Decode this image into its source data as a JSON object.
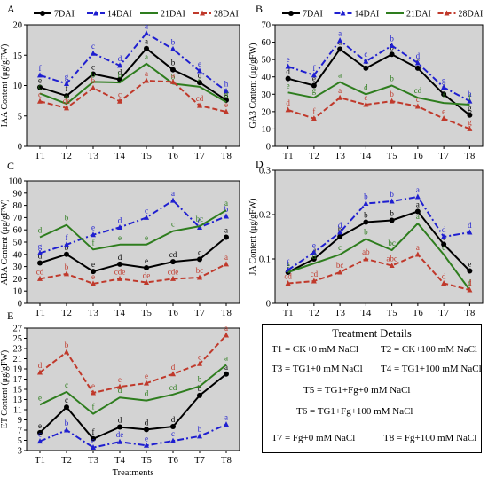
{
  "chart_data": [
    {
      "id": "A",
      "panel_label": "A",
      "type": "line",
      "ylabel": "IAA Content (μg/gFW)",
      "categories": [
        "T1",
        "T2",
        "T3",
        "T4",
        "T5",
        "T6",
        "T7",
        "T8"
      ],
      "ylim": [
        0,
        20
      ],
      "yticks": [
        0,
        5,
        10,
        15,
        20
      ],
      "legend_position": "top",
      "series": [
        {
          "name": "7DAI",
          "values": [
            9.7,
            8.3,
            11.9,
            11.0,
            16.1,
            12.6,
            10.5,
            7.6
          ],
          "letters": [
            "e",
            "f",
            "c",
            "d",
            "a",
            "b",
            "d",
            "g"
          ],
          "color": "#000000",
          "style": "solid",
          "marker": "circle"
        },
        {
          "name": "14DAI",
          "values": [
            11.7,
            10.3,
            15.3,
            13.3,
            18.6,
            16.0,
            12.4,
            9.1
          ],
          "letters": [
            "f",
            "g",
            "c",
            "d",
            "a",
            "b",
            "e",
            "h"
          ],
          "color": "#1f1fd0",
          "style": "dashdot",
          "marker": "triangle"
        },
        {
          "name": "21DAI",
          "values": [
            8.7,
            7.0,
            10.6,
            10.5,
            13.6,
            10.3,
            9.8,
            7.3
          ],
          "letters": [
            "c",
            "e",
            "b",
            "b",
            "a",
            "b",
            "c",
            "d"
          ],
          "color": "#2e7d1e",
          "style": "solid",
          "marker": "none"
        },
        {
          "name": "28DAI",
          "values": [
            7.4,
            6.3,
            9.6,
            7.4,
            10.8,
            10.6,
            6.7,
            5.7
          ],
          "letters": [
            "c",
            "de",
            "b",
            "c",
            "a",
            "a",
            "cd",
            "e"
          ],
          "color": "#c0392b",
          "style": "dashed",
          "marker": "triangle"
        }
      ]
    },
    {
      "id": "B",
      "panel_label": "B",
      "type": "line",
      "ylabel": "GA3 Content (μg/gFW)",
      "categories": [
        "T1",
        "T2",
        "T3",
        "T4",
        "T5",
        "T6",
        "T7",
        "T8"
      ],
      "ylim": [
        0,
        70
      ],
      "yticks": [
        0,
        10,
        20,
        30,
        40,
        50,
        60,
        70
      ],
      "legend_position": "top",
      "series": [
        {
          "name": "7DAI",
          "values": [
            39,
            35,
            56,
            45,
            53,
            45,
            30,
            18
          ],
          "letters": [
            "d",
            "e",
            "a",
            "c",
            "b",
            "c",
            "f",
            "g"
          ],
          "color": "#000000",
          "style": "solid",
          "marker": "circle"
        },
        {
          "name": "14DAI",
          "values": [
            46,
            41,
            61,
            49,
            58,
            48,
            34,
            26
          ],
          "letters": [
            "e",
            "f",
            "a",
            "c",
            "b",
            "d",
            "g",
            "h"
          ],
          "color": "#1f1fd0",
          "style": "dashdot",
          "marker": "triangle"
        },
        {
          "name": "21DAI",
          "values": [
            31,
            28,
            37,
            30,
            35,
            28,
            25,
            24
          ],
          "letters": [
            "e",
            "g",
            "a",
            "d",
            "b",
            "cd",
            "f",
            "f"
          ],
          "color": "#2e7d1e",
          "style": "solid",
          "marker": "none"
        },
        {
          "name": "28DAI",
          "values": [
            21,
            16,
            28,
            24,
            26,
            23,
            16,
            10
          ],
          "letters": [
            "d",
            "f",
            "a",
            "c",
            "b",
            "c",
            "e",
            "g"
          ],
          "color": "#c0392b",
          "style": "dashed",
          "marker": "triangle"
        }
      ]
    },
    {
      "id": "C",
      "panel_label": "C",
      "type": "line",
      "ylabel": "ABA Content (μg/gFW)",
      "categories": [
        "T1",
        "T2",
        "T3",
        "T4",
        "T5",
        "T6",
        "T7",
        "T8"
      ],
      "ylim": [
        0,
        100
      ],
      "yticks": [
        0,
        10,
        20,
        30,
        40,
        50,
        60,
        70,
        80,
        90,
        100
      ],
      "series": [
        {
          "name": "7DAI",
          "values": [
            33,
            40,
            26,
            32,
            29,
            34,
            36,
            54
          ],
          "letters": [
            "d",
            "b",
            "e",
            "d",
            "e",
            "cd",
            "c",
            "a"
          ],
          "color": "#000000",
          "style": "solid",
          "marker": "circle"
        },
        {
          "name": "14DAI",
          "values": [
            41,
            48,
            56,
            62,
            70,
            84,
            62,
            71
          ],
          "letters": [
            "g",
            "f",
            "e",
            "d",
            "c",
            "a",
            "d",
            "b"
          ],
          "color": "#1f1fd0",
          "style": "dashdot",
          "marker": "triangle"
        },
        {
          "name": "21DAI",
          "values": [
            54,
            64,
            44,
            48,
            48,
            59,
            63,
            76
          ],
          "letters": [
            "d",
            "b",
            "f",
            "e",
            "e",
            "c",
            "bc",
            "a"
          ],
          "color": "#2e7d1e",
          "style": "solid",
          "marker": "none"
        },
        {
          "name": "28DAI",
          "values": [
            20,
            24,
            16,
            20,
            17,
            20,
            21,
            32
          ],
          "letters": [
            "cd",
            "b",
            "e",
            "cde",
            "de",
            "cde",
            "bc",
            "a"
          ],
          "color": "#c0392b",
          "style": "dashed",
          "marker": "triangle"
        }
      ]
    },
    {
      "id": "D",
      "panel_label": "D",
      "type": "line",
      "ylabel": "JA Content (μg/gFW)",
      "categories": [
        "T1",
        "T2",
        "T3",
        "T4",
        "T5",
        "T6",
        "T7",
        "T8"
      ],
      "ylim": [
        0,
        0.3
      ],
      "yticks": [
        0,
        0.1,
        0.2,
        0.3
      ],
      "series": [
        {
          "name": "7DAI",
          "values": [
            0.07,
            0.1,
            0.15,
            0.183,
            0.187,
            0.207,
            0.133,
            0.073
          ],
          "letters": [
            "e",
            "d",
            "b",
            "b",
            "b",
            "a",
            "c",
            "e"
          ],
          "color": "#000000",
          "style": "solid",
          "marker": "circle"
        },
        {
          "name": "14DAI",
          "values": [
            0.075,
            0.115,
            0.16,
            0.225,
            0.23,
            0.24,
            0.15,
            0.16
          ],
          "letters": [
            "f",
            "e",
            "d",
            "b",
            "b",
            "a",
            "d",
            "d"
          ],
          "color": "#1f1fd0",
          "style": "dashdot",
          "marker": "triangle"
        },
        {
          "name": "21DAI",
          "values": [
            0.07,
            0.09,
            0.11,
            0.145,
            0.12,
            0.18,
            0.11,
            0.03
          ],
          "letters": [
            "e",
            "d",
            "c",
            "b",
            "bc",
            "a",
            "c",
            "f"
          ],
          "color": "#2e7d1e",
          "style": "solid",
          "marker": "none"
        },
        {
          "name": "28DAI",
          "values": [
            0.045,
            0.05,
            0.07,
            0.1,
            0.085,
            0.11,
            0.045,
            0.03
          ],
          "letters": [
            "cd",
            "cd",
            "bc",
            "ab",
            "abc",
            "a",
            "d",
            "d"
          ],
          "color": "#c0392b",
          "style": "dashed",
          "marker": "triangle"
        }
      ]
    },
    {
      "id": "E",
      "panel_label": "E",
      "type": "line",
      "ylabel": "ET Content (μg/gFW)",
      "xlabel": "Treatments",
      "categories": [
        "T1",
        "T2",
        "T3",
        "T4",
        "T5",
        "T6",
        "T7",
        "T8"
      ],
      "ylim": [
        3,
        27
      ],
      "yticks": [
        3,
        5,
        7,
        9,
        11,
        13,
        15,
        17,
        19,
        21,
        23,
        25,
        27
      ],
      "series": [
        {
          "name": "7DAI",
          "values": [
            6.5,
            11.5,
            5.3,
            7.6,
            7.1,
            7.7,
            13.8,
            18.0
          ],
          "letters": [
            "e",
            "c",
            "f",
            "d",
            "d",
            "d",
            "b",
            "a"
          ],
          "color": "#000000",
          "style": "solid",
          "marker": "circle"
        },
        {
          "name": "14DAI",
          "values": [
            4.8,
            7.0,
            3.6,
            4.7,
            4.0,
            4.9,
            5.8,
            8.1
          ],
          "letters": [
            "c",
            "b",
            "e",
            "de",
            "e",
            "c",
            "b",
            "a"
          ],
          "color": "#1f1fd0",
          "style": "dashdot",
          "marker": "triangle"
        },
        {
          "name": "21DAI",
          "values": [
            12.0,
            14.5,
            10.2,
            13.4,
            12.8,
            14.0,
            15.6,
            19.8
          ],
          "letters": [
            "e",
            "c",
            "f",
            "d",
            "d",
            "cd",
            "b",
            "a"
          ],
          "color": "#2e7d1e",
          "style": "solid",
          "marker": "none"
        },
        {
          "name": "28DAI",
          "values": [
            18.3,
            22.3,
            14.3,
            15.5,
            16.2,
            18.0,
            20.0,
            25.6
          ],
          "letters": [
            "d",
            "b",
            "e",
            "e",
            "e",
            "d",
            "c",
            "a"
          ],
          "color": "#c0392b",
          "style": "dashed",
          "marker": "triangle"
        }
      ]
    }
  ],
  "treatment_details": {
    "title": "Treatment Details",
    "items": [
      "T1 = CK+0 mM NaCl",
      "T2 = CK+100 mM NaCl",
      "T3 = TG1+0 mM NaCl",
      "T4 = TG1+100 mM NaCl",
      "T5 = TG1+Fg+0 mM NaCl",
      "T6 = TG1+Fg+100 mM NaCl",
      "T7 = Fg+0 mM NaCl",
      "T8 = Fg+100 mM NaCl"
    ]
  },
  "colors": {
    "plot_background": "#d3d3d3",
    "7DAI": "#000000",
    "14DAI": "#1f1fd0",
    "21DAI": "#2e7d1e",
    "28DAI": "#c0392b"
  }
}
